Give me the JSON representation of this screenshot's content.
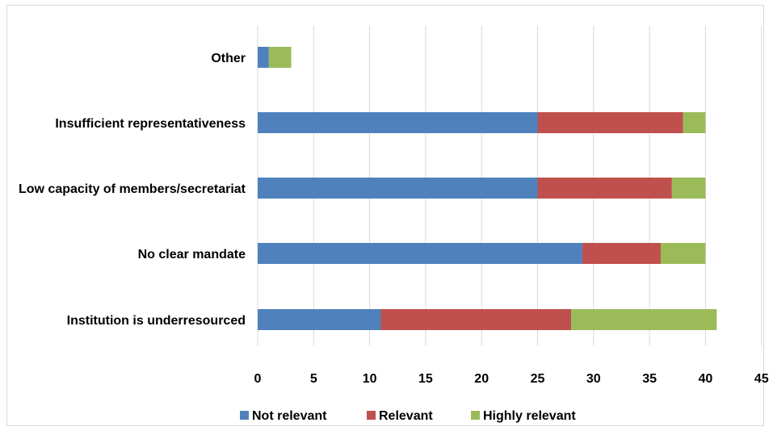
{
  "chart_data": {
    "type": "bar",
    "orientation": "horizontal",
    "stacked": true,
    "categories": [
      "Other",
      "Insufficient representativeness",
      "Low capacity of members/secretariat",
      "No clear mandate",
      "Institution is underresourced"
    ],
    "series": [
      {
        "name": "Not relevant",
        "color": "#4f81bd",
        "values": [
          1,
          25,
          25,
          29,
          11
        ]
      },
      {
        "name": "Relevant",
        "color": "#c0504d",
        "values": [
          0,
          13,
          12,
          7,
          17
        ]
      },
      {
        "name": "Highly relevant",
        "color": "#9bbb59",
        "values": [
          2,
          2,
          3,
          4,
          13
        ]
      }
    ],
    "xlim": [
      0,
      45
    ],
    "xticks": [
      "0",
      "5",
      "10",
      "15",
      "20",
      "25",
      "30",
      "35",
      "40",
      "45"
    ],
    "grid": "vertical",
    "legend": "bottom"
  }
}
